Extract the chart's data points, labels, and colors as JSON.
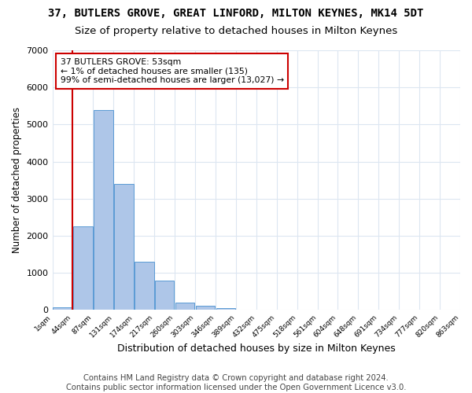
{
  "title1": "37, BUTLERS GROVE, GREAT LINFORD, MILTON KEYNES, MK14 5DT",
  "title2": "Size of property relative to detached houses in Milton Keynes",
  "xlabel": "Distribution of detached houses by size in Milton Keynes",
  "ylabel": "Number of detached properties",
  "footer1": "Contains HM Land Registry data © Crown copyright and database right 2024.",
  "footer2": "Contains public sector information licensed under the Open Government Licence v3.0.",
  "bar_values": [
    80,
    2250,
    5400,
    3400,
    1300,
    800,
    200,
    120,
    50,
    0,
    0,
    0,
    0,
    0,
    0,
    0,
    0,
    0,
    0,
    0
  ],
  "bin_labels": [
    "1sqm",
    "44sqm",
    "87sqm",
    "131sqm",
    "174sqm",
    "217sqm",
    "260sqm",
    "303sqm",
    "346sqm",
    "389sqm",
    "432sqm",
    "475sqm",
    "518sqm",
    "561sqm",
    "604sqm",
    "648sqm",
    "691sqm",
    "734sqm",
    "777sqm",
    "820sqm",
    "863sqm"
  ],
  "bar_color": "#aec6e8",
  "bar_edge_color": "#5b9bd5",
  "grid_color": "#dce6f1",
  "annotation_title": "37 BUTLERS GROVE: 53sqm",
  "annotation_line1": "← 1% of detached houses are smaller (135)",
  "annotation_line2": "99% of semi-detached houses are larger (13,027) →",
  "red_line_color": "#cc0000",
  "annotation_box_color": "#ffffff",
  "annotation_box_edge": "#cc0000",
  "ylim": [
    0,
    7000
  ],
  "yticks": [
    0,
    1000,
    2000,
    3000,
    4000,
    5000,
    6000,
    7000
  ],
  "title1_fontsize": 10,
  "title2_fontsize": 9.5,
  "xlabel_fontsize": 9,
  "ylabel_fontsize": 8.5,
  "footer_fontsize": 7.2,
  "red_line_x": 0.47
}
